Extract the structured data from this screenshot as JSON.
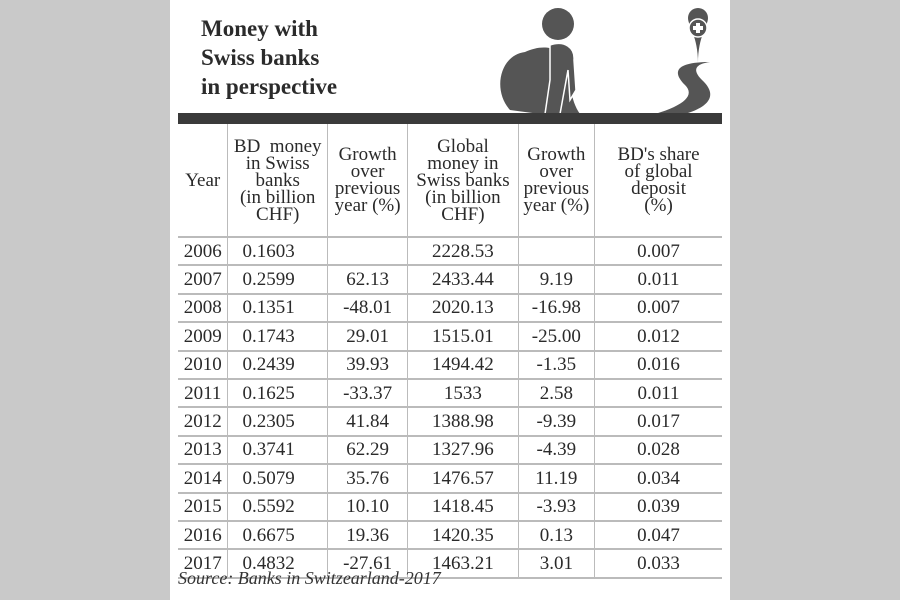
{
  "title_lines": [
    "Money with",
    "Swiss banks",
    "in perspective"
  ],
  "icons": [
    "person-carrying-sack-icon",
    "location-pin-swiss-cross-icon",
    "winding-road-icon"
  ],
  "colors": {
    "background": "#c9c9c9",
    "panel": "#ffffff",
    "dark": "#3a3a3a",
    "grid": "#bbbbbb"
  },
  "chart_data": {
    "type": "table",
    "title": "Money with Swiss banks in perspective",
    "columns": [
      [
        "Year"
      ],
      [
        "BD  money",
        "in Swiss",
        "banks",
        "(in billion",
        "CHF)"
      ],
      [
        "Growth",
        "over",
        "previous",
        "year (%)"
      ],
      [
        "Global",
        "money in",
        "Swiss banks",
        "(in billion",
        "CHF)"
      ],
      [
        "Growth",
        "over",
        "previous",
        "year (%)"
      ],
      [
        "BD's share",
        "of global",
        "deposit",
        "(%)"
      ]
    ],
    "rows": [
      [
        "2006",
        "0.1603",
        "",
        "2228.53",
        "",
        "0.007"
      ],
      [
        "2007",
        "0.2599",
        "62.13",
        "2433.44",
        "9.19",
        "0.011"
      ],
      [
        "2008",
        "0.1351",
        "-48.01",
        "2020.13",
        "-16.98",
        "0.007"
      ],
      [
        "2009",
        "0.1743",
        "29.01",
        "1515.01",
        "-25.00",
        "0.012"
      ],
      [
        "2010",
        "0.2439",
        "39.93",
        "1494.42",
        "-1.35",
        "0.016"
      ],
      [
        "2011",
        "0.1625",
        "-33.37",
        "1533",
        "2.58",
        "0.011"
      ],
      [
        "2012",
        "0.2305",
        "41.84",
        "1388.98",
        "-9.39",
        "0.017"
      ],
      [
        "2013",
        "0.3741",
        "62.29",
        "1327.96",
        "-4.39",
        "0.028"
      ],
      [
        "2014",
        "0.5079",
        "35.76",
        "1476.57",
        "11.19",
        "0.034"
      ],
      [
        "2015",
        "0.5592",
        "10.10",
        "1418.45",
        "-3.93",
        "0.039"
      ],
      [
        "2016",
        "0.6675",
        "19.36",
        "1420.35",
        "0.13",
        "0.047"
      ],
      [
        "2017",
        "0.4832",
        "-27.61",
        "1463.21",
        "3.01",
        "0.033"
      ]
    ],
    "source": "Source: Banks in Switzearland-2017"
  }
}
